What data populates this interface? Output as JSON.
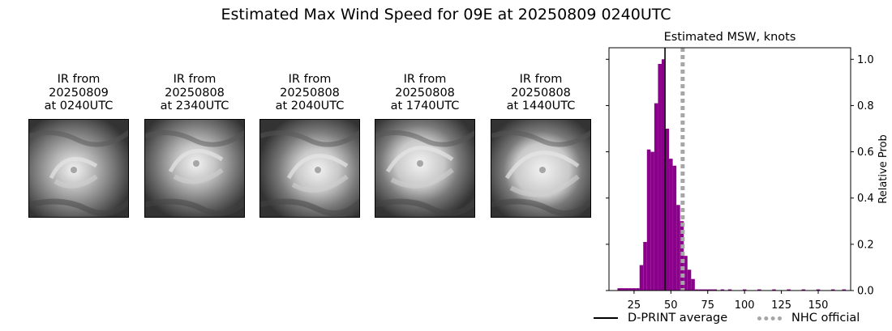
{
  "figure": {
    "title": "Estimated Max Wind Speed for 09E at 20250809 0240UTC"
  },
  "ir_panels": [
    {
      "line1": "IR from",
      "line2": "20250809",
      "line3": "at 0240UTC"
    },
    {
      "line1": "IR from",
      "line2": "20250808",
      "line3": "at 2340UTC"
    },
    {
      "line1": "IR from",
      "line2": "20250808",
      "line3": "at 2040UTC"
    },
    {
      "line1": "IR from",
      "line2": "20250808",
      "line3": "at 1740UTC"
    },
    {
      "line1": "IR from",
      "line2": "20250808",
      "line3": "at 1440UTC"
    }
  ],
  "chart_data": {
    "type": "bar",
    "title": "Estimated MSW, knots",
    "xlabel": "",
    "ylabel": "Relative Prob",
    "xlim": [
      8,
      172
    ],
    "ylim": [
      0,
      1.05
    ],
    "xticks": [
      25,
      50,
      75,
      100,
      125,
      150
    ],
    "yticks": [
      0.0,
      0.2,
      0.4,
      0.6,
      0.8,
      1.0
    ],
    "ytick_labels": [
      "0.0",
      "0.2",
      "0.4",
      "0.6",
      "0.8",
      "1.0"
    ],
    "y_axis_side": "right",
    "bin_width": 2.5,
    "bins": [
      {
        "x": 15,
        "y": 0.01
      },
      {
        "x": 17.5,
        "y": 0.01
      },
      {
        "x": 20,
        "y": 0.01
      },
      {
        "x": 22.5,
        "y": 0.01
      },
      {
        "x": 25,
        "y": 0.01
      },
      {
        "x": 27.5,
        "y": 0.01
      },
      {
        "x": 30,
        "y": 0.11
      },
      {
        "x": 32.5,
        "y": 0.21
      },
      {
        "x": 35,
        "y": 0.61
      },
      {
        "x": 37.5,
        "y": 0.6
      },
      {
        "x": 40,
        "y": 0.81
      },
      {
        "x": 42.5,
        "y": 0.98
      },
      {
        "x": 45,
        "y": 1.0
      },
      {
        "x": 47.5,
        "y": 0.7
      },
      {
        "x": 50,
        "y": 0.57
      },
      {
        "x": 52.5,
        "y": 0.54
      },
      {
        "x": 55,
        "y": 0.37
      },
      {
        "x": 57.5,
        "y": 0.3
      },
      {
        "x": 60,
        "y": 0.15
      },
      {
        "x": 62.5,
        "y": 0.09
      },
      {
        "x": 65,
        "y": 0.05
      },
      {
        "x": 67.5,
        "y": 0.005
      },
      {
        "x": 70,
        "y": 0.005
      },
      {
        "x": 72.5,
        "y": 0.005
      },
      {
        "x": 75,
        "y": 0.005
      },
      {
        "x": 77.5,
        "y": 0.005
      },
      {
        "x": 80,
        "y": 0.005
      },
      {
        "x": 85,
        "y": 0.005
      },
      {
        "x": 90,
        "y": 0.005
      },
      {
        "x": 100,
        "y": 0.005
      },
      {
        "x": 110,
        "y": 0.005
      },
      {
        "x": 120,
        "y": 0.005
      },
      {
        "x": 130,
        "y": 0.005
      },
      {
        "x": 140,
        "y": 0.005
      },
      {
        "x": 150,
        "y": 0.005
      },
      {
        "x": 160,
        "y": 0.005
      },
      {
        "x": 167.5,
        "y": 0.005
      }
    ],
    "bar_color": "#8b008b",
    "reference_lines": [
      {
        "name": "D-PRINT average",
        "x": 46,
        "color": "#000000",
        "style": "solid"
      },
      {
        "name": "NHC official",
        "x": 58,
        "color": "#a6a6a6",
        "style": "dotted"
      }
    ],
    "legend_position": "bottom"
  }
}
